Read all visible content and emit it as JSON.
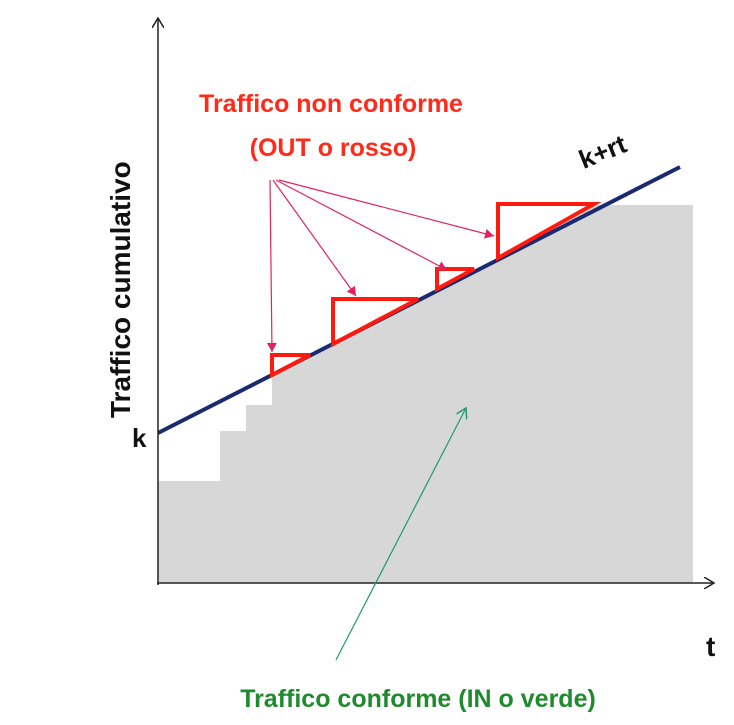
{
  "axes": {
    "y_label": "Traffico cumulativo",
    "x_label": "t",
    "k_label": "k"
  },
  "line_label": "k+rt",
  "non_conforming": {
    "line1": "Traffico non conforme",
    "line2": "(OUT o rosso)"
  },
  "conforming": {
    "label": "Traffico conforme (IN o verde)"
  },
  "colors": {
    "line": "#1a2a6e",
    "excess": "#ff1a10",
    "fill": "#d7d7d7",
    "annotation_red": "#ff2a1a",
    "annotation_green": "#1f8a2e"
  }
}
